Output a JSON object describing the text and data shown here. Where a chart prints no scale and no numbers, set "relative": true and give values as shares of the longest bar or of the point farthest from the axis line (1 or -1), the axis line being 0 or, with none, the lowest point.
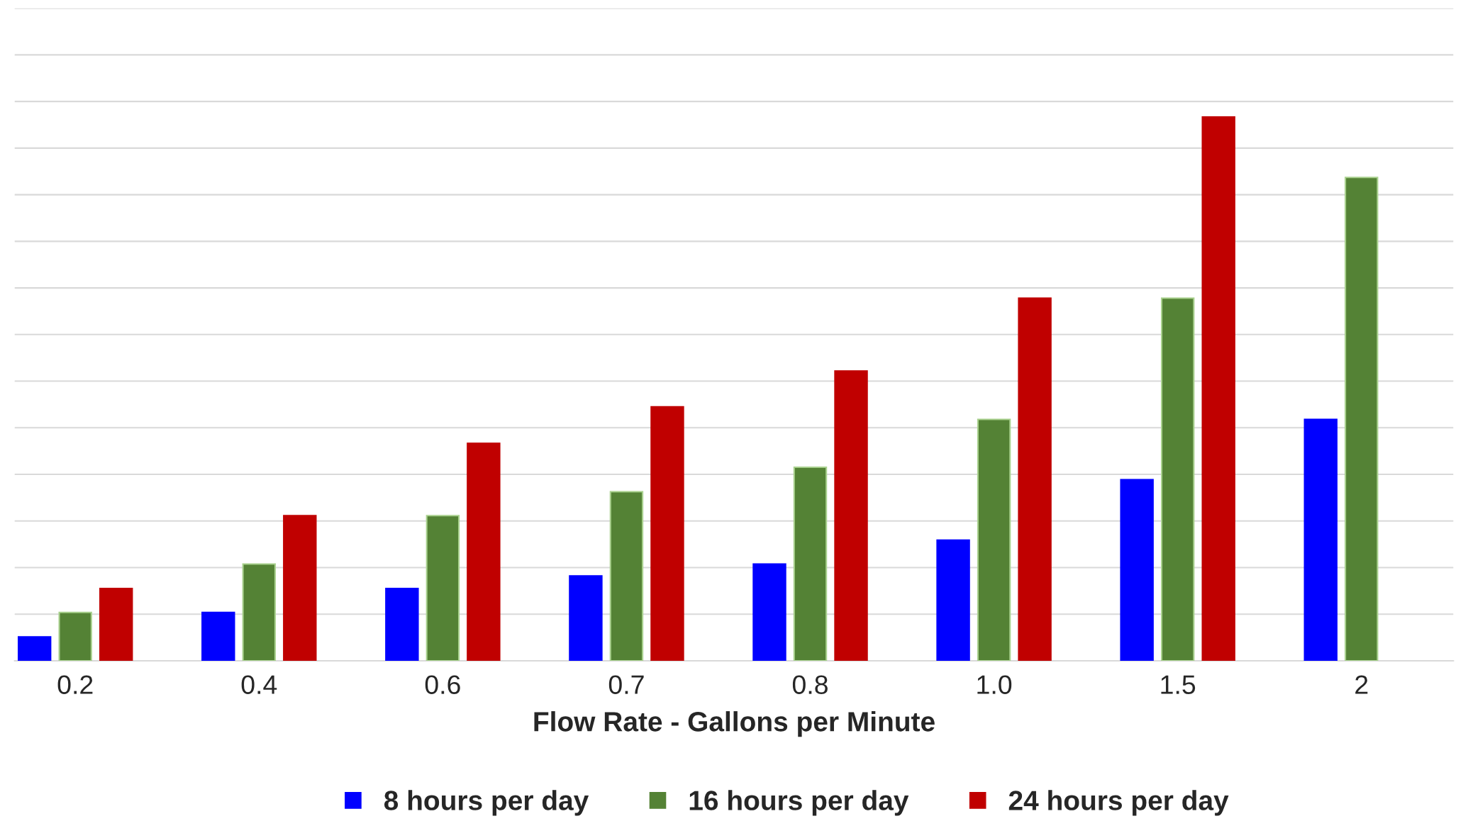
{
  "chart_data": {
    "type": "bar",
    "xlabel": "Flow Rate - Gallons per Minute",
    "categories": [
      "0.2",
      "0.4",
      "0.6",
      "0.7",
      "0.8",
      "1.0",
      "1.5",
      "2"
    ],
    "relative": true,
    "grid": "y",
    "legend": "bottom",
    "series": [
      {
        "name": "8 hours per day",
        "color": "#0000ff",
        "values": [
          0.044,
          0.089,
          0.133,
          0.156,
          0.178,
          0.222,
          0.333,
          0.444
        ]
      },
      {
        "name": "16 hours per day",
        "color": "#548235",
        "values": [
          0.089,
          0.178,
          0.267,
          0.311,
          0.356,
          0.444,
          0.667,
          0.889
        ]
      },
      {
        "name": "24 hours per day",
        "color": "#c00000",
        "values": [
          0.133,
          0.267,
          0.4,
          0.467,
          0.533,
          0.667,
          1.0,
          null
        ]
      }
    ]
  }
}
